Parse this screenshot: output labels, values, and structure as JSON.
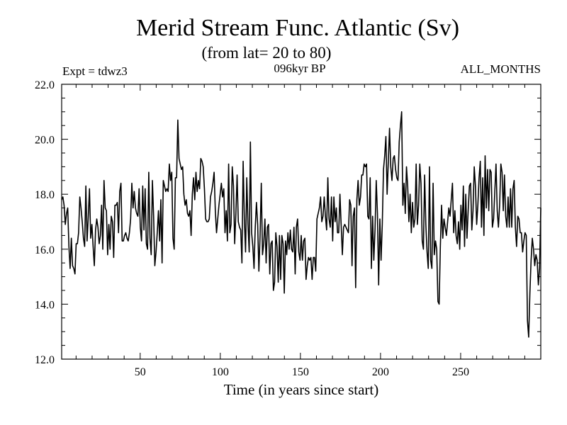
{
  "chart_data": {
    "type": "line",
    "title": "Merid Stream Func. Atlantic (Sv)",
    "subtitle": "(from lat= 20 to 80)",
    "experiment_label": "Expt = tdwz3",
    "period_label": "096kyr BP",
    "months_label": "ALL_MONTHS",
    "xlabel": "Time (in years since start)",
    "ylabel": "",
    "xlim": [
      1,
      300
    ],
    "ylim": [
      12.0,
      22.0
    ],
    "x_ticks": [
      50,
      100,
      150,
      200,
      250
    ],
    "x_tick_labels": [
      "50",
      "100",
      "150",
      "200",
      "250"
    ],
    "y_ticks": [
      12.0,
      14.0,
      16.0,
      18.0,
      20.0,
      22.0
    ],
    "y_tick_labels": [
      "12.0",
      "14.0",
      "16.0",
      "18.0",
      "20.0",
      "22.0"
    ],
    "line_color": "#000000",
    "series": [
      {
        "name": "Atlantic meridional stream function",
        "x_start": 1,
        "x_step": 1,
        "values": [
          17.8,
          17.9,
          17.6,
          16.9,
          17.3,
          17.5,
          16.1,
          15.3,
          16.4,
          15.4,
          15.3,
          15.1,
          16.2,
          16.2,
          16.6,
          17.9,
          17.5,
          17.0,
          16.4,
          16.1,
          18.3,
          16.3,
          17.2,
          18.2,
          16.4,
          16.9,
          16.1,
          15.4,
          16.7,
          17.1,
          16.8,
          16.2,
          16.5,
          17.6,
          16.0,
          18.5,
          17.5,
          17.4,
          15.8,
          16.9,
          16.0,
          17.2,
          17.0,
          15.7,
          17.6,
          17.6,
          17.7,
          16.6,
          18.1,
          18.4,
          16.3,
          16.3,
          16.5,
          16.6,
          16.4,
          16.3,
          16.6,
          17.1,
          18.4,
          17.5,
          18.1,
          17.5,
          17.3,
          17.2,
          18.2,
          16.8,
          16.3,
          18.3,
          16.7,
          18.2,
          16.2,
          16.0,
          18.8,
          16.4,
          15.8,
          18.5,
          17.2,
          15.4,
          15.9,
          16.6,
          17.4,
          16.3,
          17.8,
          15.5,
          18.5,
          18.3,
          18.1,
          18.2,
          18.1,
          19.1,
          18.5,
          18.8,
          16.4,
          16.0,
          18.6,
          18.6,
          20.7,
          19.3,
          19.1,
          18.9,
          19.0,
          18.0,
          17.6,
          17.8,
          17.3,
          17.2,
          17.4,
          16.5,
          18.0,
          18.6,
          17.8,
          18.8,
          18.1,
          18.5,
          18.2,
          19.3,
          19.2,
          19.0,
          18.2,
          17.1,
          17.0,
          17.0,
          17.1,
          17.9,
          18.1,
          18.4,
          18.8,
          17.4,
          16.6,
          17.1,
          17.6,
          18.0,
          18.4,
          17.9,
          18.2,
          16.6,
          17.4,
          16.3,
          19.1,
          16.6,
          16.9,
          19.0,
          18.3,
          16.2,
          17.3,
          18.7,
          17.0,
          16.8,
          16.7,
          15.5,
          19.2,
          17.1,
          15.9,
          18.6,
          16.9,
          15.9,
          19.9,
          16.6,
          16.1,
          15.3,
          16.8,
          17.7,
          16.9,
          15.2,
          16.5,
          18.4,
          15.8,
          16.2,
          17.1,
          15.5,
          16.8,
          16.9,
          15.1,
          16.2,
          16.3,
          14.5,
          14.8,
          16.6,
          16.1,
          14.8,
          16.5,
          14.9,
          16.5,
          16.2,
          14.4,
          16.3,
          15.8,
          16.6,
          16.0,
          16.7,
          16.0,
          15.9,
          16.8,
          15.1,
          16.8,
          17.1,
          15.9,
          15.6,
          16.5,
          15.6,
          16.3,
          16.4,
          14.9,
          15.4,
          15.7,
          15.6,
          15.7,
          14.9,
          15.7,
          15.7,
          15.2,
          17.1,
          17.3,
          17.5,
          17.9,
          17.0,
          17.2,
          17.9,
          17.2,
          16.7,
          18.6,
          17.1,
          16.8,
          17.9,
          16.3,
          17.9,
          17.0,
          17.5,
          16.6,
          16.6,
          18.0,
          16.9,
          15.8,
          16.8,
          16.9,
          16.8,
          16.7,
          16.6,
          17.8,
          17.6,
          15.4,
          17.2,
          17.5,
          14.6,
          17.8,
          18.5,
          17.6,
          17.9,
          18.7,
          18.7,
          19.1,
          19.0,
          19.1,
          17.2,
          17.1,
          18.6,
          15.3,
          17.2,
          15.6,
          16.7,
          18.5,
          17.3,
          14.7,
          17.1,
          15.6,
          16.9,
          18.9,
          19.4,
          20.1,
          18.0,
          19.2,
          20.4,
          19.0,
          18.5,
          19.3,
          19.4,
          18.9,
          18.6,
          18.5,
          19.9,
          20.5,
          21.0,
          17.6,
          18.4,
          17.3,
          19.0,
          18.3,
          17.0,
          18.0,
          16.6,
          17.7,
          16.8,
          17.1,
          19.1,
          16.9,
          17.6,
          19.1,
          18.4,
          16.3,
          16.0,
          18.7,
          16.9,
          15.9,
          15.3,
          19.0,
          15.6,
          15.3,
          18.4,
          15.8,
          16.3,
          16.0,
          14.1,
          14.0,
          16.1,
          17.6,
          16.4,
          17.1,
          16.8,
          16.5,
          17.0,
          17.5,
          17.2,
          17.8,
          18.4,
          16.6,
          17.4,
          16.5,
          16.2,
          17.0,
          16.0,
          17.6,
          16.7,
          18.3,
          16.1,
          18.0,
          16.4,
          17.4,
          18.3,
          18.4,
          16.7,
          17.4,
          19.0,
          18.3,
          16.9,
          17.6,
          18.6,
          19.2,
          16.8,
          18.6,
          16.5,
          19.4,
          17.5,
          18.9,
          17.4,
          18.9,
          18.8,
          16.8,
          17.1,
          18.1,
          19.1,
          17.4,
          16.8,
          17.6,
          19.1,
          18.8,
          17.4,
          18.7,
          17.2,
          16.8,
          17.9,
          16.8,
          18.2,
          16.8,
          18.2,
          18.5,
          16.8,
          16.1,
          17.2,
          17.1,
          16.6,
          16.6,
          15.9,
          16.3,
          16.6,
          16.5,
          13.4,
          12.8,
          14.4,
          15.6,
          16.4,
          16.0,
          15.4,
          15.8,
          15.6,
          14.7,
          15.3,
          17.5
        ]
      }
    ]
  }
}
